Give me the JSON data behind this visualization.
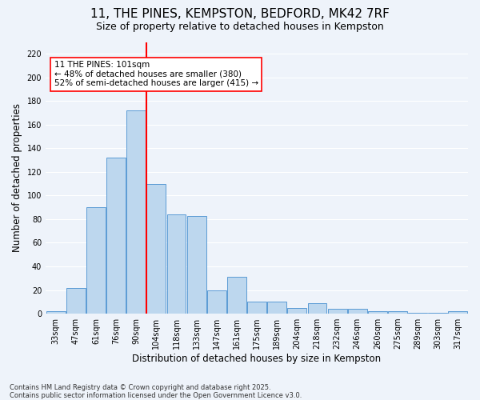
{
  "title": "11, THE PINES, KEMPSTON, BEDFORD, MK42 7RF",
  "subtitle": "Size of property relative to detached houses in Kempston",
  "xlabel": "Distribution of detached houses by size in Kempston",
  "ylabel": "Number of detached properties",
  "footnote1": "Contains HM Land Registry data © Crown copyright and database right 2025.",
  "footnote2": "Contains public sector information licensed under the Open Government Licence v3.0.",
  "categories": [
    "33sqm",
    "47sqm",
    "61sqm",
    "76sqm",
    "90sqm",
    "104sqm",
    "118sqm",
    "133sqm",
    "147sqm",
    "161sqm",
    "175sqm",
    "189sqm",
    "204sqm",
    "218sqm",
    "232sqm",
    "246sqm",
    "260sqm",
    "275sqm",
    "289sqm",
    "303sqm",
    "317sqm"
  ],
  "bar_heights": [
    2,
    22,
    90,
    132,
    172,
    110,
    84,
    83,
    20,
    31,
    10,
    10,
    5,
    9,
    4,
    4,
    2,
    2,
    1,
    1,
    2
  ],
  "bar_color": "#BDD7EE",
  "bar_edge_color": "#5B9BD5",
  "vline_color": "red",
  "vline_pos": 4.5,
  "annotation_text": "11 THE PINES: 101sqm\n← 48% of detached houses are smaller (380)\n52% of semi-detached houses are larger (415) →",
  "annotation_box_color": "white",
  "annotation_box_edge_color": "red",
  "ylim": [
    0,
    230
  ],
  "yticks": [
    0,
    20,
    40,
    60,
    80,
    100,
    120,
    140,
    160,
    180,
    200,
    220
  ],
  "bg_color": "#EEF3FA",
  "grid_color": "white",
  "title_fontsize": 11,
  "subtitle_fontsize": 9,
  "label_fontsize": 8.5,
  "tick_fontsize": 7,
  "annot_fontsize": 7.5,
  "footnote_fontsize": 6
}
